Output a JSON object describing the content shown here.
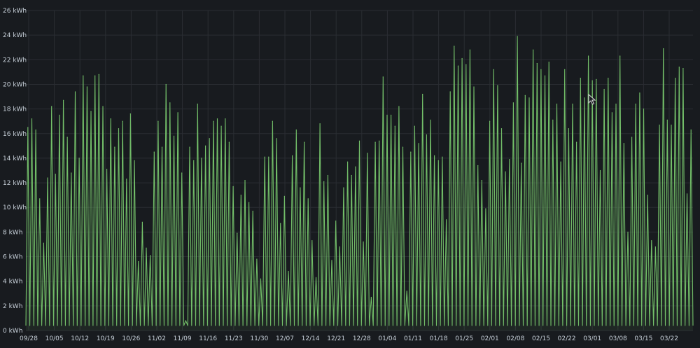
{
  "chart_data": {
    "type": "line",
    "title": "",
    "xlabel": "",
    "ylabel": "",
    "unit": "kWh",
    "ylim": [
      0,
      26
    ],
    "yticks": [
      {
        "value": 0,
        "label": "0 kWh"
      },
      {
        "value": 2,
        "label": "2 kWh"
      },
      {
        "value": 4,
        "label": "4 kWh"
      },
      {
        "value": 6,
        "label": "6 kWh"
      },
      {
        "value": 8,
        "label": "8 kWh"
      },
      {
        "value": 10,
        "label": "10 kWh"
      },
      {
        "value": 12,
        "label": "12 kWh"
      },
      {
        "value": 14,
        "label": "14 kWh"
      },
      {
        "value": 16,
        "label": "16 kWh"
      },
      {
        "value": 18,
        "label": "18 kWh"
      },
      {
        "value": 20,
        "label": "20 kWh"
      },
      {
        "value": 22,
        "label": "22 kWh"
      },
      {
        "value": 24,
        "label": "24 kWh"
      },
      {
        "value": 26,
        "label": "26 kWh"
      }
    ],
    "xticks": [
      "09/28",
      "10/05",
      "10/12",
      "10/19",
      "10/26",
      "11/02",
      "11/09",
      "11/16",
      "11/23",
      "11/30",
      "12/07",
      "12/14",
      "12/21",
      "12/28",
      "01/04",
      "01/11",
      "01/18",
      "01/25",
      "02/01",
      "02/08",
      "02/15",
      "02/22",
      "03/01",
      "03/08",
      "03/15",
      "03/22"
    ],
    "x_start": "09/28",
    "x_step": "1 day",
    "grid": true,
    "legend": "none",
    "color": "#73bf69",
    "series": [
      {
        "values": [
          16.5,
          17.2,
          16.3,
          10.7,
          7.1,
          12.4,
          18.2,
          12.7,
          17.5,
          18.7,
          15.7,
          12.8,
          19.4,
          14.0,
          20.7,
          19.8,
          17.8,
          20.7,
          20.8,
          18.2,
          13.1,
          17.2,
          14.9,
          16.4,
          17.0,
          12.3,
          17.6,
          13.8,
          5.6,
          8.8,
          6.7,
          6.1,
          14.5,
          17.0,
          14.9,
          20.0,
          18.5,
          15.8,
          17.7,
          12.8,
          0.8,
          14.9,
          13.8,
          18.4,
          14.0,
          15.0,
          15.6,
          17.0,
          17.2,
          16.6,
          17.2,
          15.3,
          11.7,
          7.9,
          11.0,
          12.2,
          10.4,
          9.7,
          5.8,
          4.2,
          14.1,
          14.1,
          17.0,
          15.6,
          8.7,
          10.9,
          4.8,
          14.2,
          16.3,
          11.6,
          15.3,
          10.7,
          7.3,
          4.3,
          16.8,
          12.1,
          12.6,
          5.7,
          8.9,
          6.8,
          11.6,
          13.7,
          12.6,
          13.3,
          15.4,
          7.2,
          14.4,
          2.7,
          15.3,
          15.4,
          20.6,
          17.5,
          17.5,
          16.6,
          18.2,
          14.9,
          3.2,
          14.5,
          16.6,
          15.2,
          19.2,
          15.9,
          17.1,
          14.2,
          13.8,
          14.1,
          9.0,
          19.4,
          23.1,
          21.5,
          22.1,
          21.6,
          22.8,
          19.8,
          13.4,
          12.2,
          9.9,
          17.0,
          21.2,
          19.9,
          16.4,
          12.9,
          13.9,
          18.5,
          23.9,
          13.6,
          19.1,
          18.9,
          22.8,
          21.7,
          21.2,
          20.7,
          21.8,
          17.1,
          18.4,
          13.7,
          21.2,
          16.4,
          18.4,
          15.3,
          20.5,
          18.9,
          22.3,
          20.3,
          20.4,
          13.0,
          19.6,
          20.5,
          17.7,
          18.4,
          22.3,
          15.2,
          8.0,
          15.7,
          18.4,
          19.3,
          18.0,
          11.0,
          7.3,
          6.8,
          16.7,
          22.9,
          17.1,
          16.7,
          20.5,
          21.4,
          21.3,
          11.1,
          16.3
        ]
      }
    ]
  },
  "icons": {
    "cursor": "mouse-pointer-icon"
  }
}
